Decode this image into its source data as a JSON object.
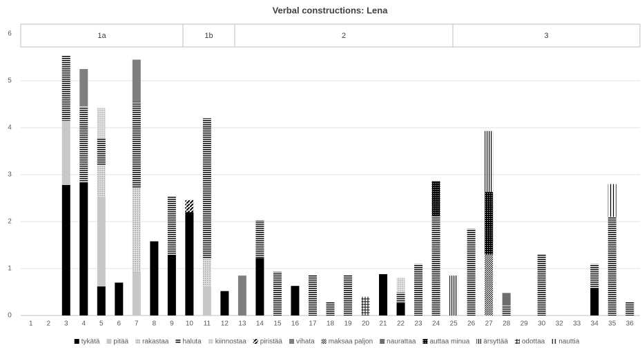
{
  "chart_data": {
    "type": "stacked_bar",
    "title": "Verbal constructions: Lena",
    "header_groups": [
      "1a",
      "1b",
      "2",
      "3"
    ],
    "categories": [
      "1",
      "2",
      "3",
      "4",
      "5",
      "6",
      "7",
      "8",
      "9",
      "10",
      "11",
      "12",
      "13",
      "14",
      "15",
      "16",
      "17",
      "18",
      "19",
      "20",
      "21",
      "22",
      "23",
      "24",
      "25",
      "26",
      "27",
      "28",
      "29",
      "30",
      "32",
      "33",
      "34",
      "35",
      "36"
    ],
    "ylim": [
      0,
      6
    ],
    "yticks": [
      0,
      1,
      2,
      3,
      4,
      5,
      6
    ],
    "grid": true,
    "legend": "bottom",
    "series": [
      {
        "name": "tykätä",
        "color": "#000000",
        "pattern": "solid",
        "values": [
          null,
          null,
          2.78,
          2.83,
          0.62,
          0.7,
          null,
          1.58,
          1.28,
          2.2,
          null,
          0.52,
          null,
          1.22,
          null,
          0.63,
          null,
          null,
          null,
          null,
          0.88,
          0.26,
          null,
          null,
          null,
          null,
          null,
          null,
          null,
          null,
          null,
          null,
          0.57,
          null,
          null
        ]
      },
      {
        "name": "pitää",
        "color": "#c8c8c8",
        "pattern": "solid",
        "values": [
          null,
          null,
          1.37,
          null,
          1.91,
          null,
          0.92,
          null,
          null,
          null,
          0.62,
          null,
          null,
          null,
          null,
          null,
          null,
          null,
          null,
          null,
          null,
          null,
          null,
          null,
          null,
          null,
          null,
          null,
          null,
          null,
          null,
          null,
          null,
          null,
          null
        ]
      },
      {
        "name": "rakastaa",
        "color": "#808080",
        "pattern": "dots",
        "values": [
          null,
          null,
          null,
          null,
          0.67,
          null,
          1.81,
          null,
          null,
          null,
          0.6,
          null,
          null,
          null,
          null,
          null,
          null,
          null,
          null,
          null,
          null,
          null,
          null,
          null,
          null,
          null,
          null,
          null,
          null,
          null,
          null,
          null,
          null,
          null,
          null
        ]
      },
      {
        "name": "haluta",
        "color": "#000000",
        "pattern": "hstripe",
        "values": [
          null,
          null,
          1.4,
          1.62,
          0.57,
          null,
          1.82,
          null,
          1.25,
          null,
          2.98,
          null,
          null,
          0.81,
          0.93,
          null,
          0.87,
          0.3,
          0.87,
          null,
          null,
          0.23,
          1.1,
          2.13,
          null,
          1.85,
          null,
          0.22,
          null,
          1.3,
          null,
          null,
          0.53,
          2.1,
          0.3
        ]
      },
      {
        "name": "kiinnostaa",
        "color": "#a0a0a0",
        "pattern": "dots",
        "values": [
          null,
          null,
          null,
          null,
          0.65,
          null,
          null,
          null,
          null,
          null,
          null,
          null,
          null,
          null,
          null,
          null,
          null,
          null,
          null,
          null,
          null,
          0.31,
          null,
          null,
          null,
          null,
          null,
          null,
          null,
          null,
          null,
          null,
          null,
          null,
          null
        ]
      },
      {
        "name": "piristää",
        "color": "#000000",
        "pattern": "diag",
        "values": [
          null,
          null,
          null,
          null,
          null,
          null,
          null,
          null,
          null,
          0.26,
          null,
          null,
          null,
          null,
          null,
          null,
          null,
          null,
          null,
          null,
          null,
          null,
          null,
          null,
          null,
          null,
          null,
          null,
          null,
          null,
          null,
          null,
          null,
          null,
          null
        ]
      },
      {
        "name": "vihata",
        "color": "#7f7f7f",
        "pattern": "solid",
        "values": [
          null,
          null,
          null,
          0.8,
          null,
          null,
          0.9,
          null,
          null,
          null,
          null,
          null,
          0.85,
          null,
          null,
          null,
          null,
          null,
          null,
          null,
          null,
          null,
          null,
          null,
          null,
          null,
          null,
          null,
          null,
          null,
          null,
          null,
          null,
          null,
          null
        ]
      },
      {
        "name": "maksaa paljon",
        "color": "#000000",
        "pattern": "finediag",
        "values": [
          null,
          null,
          null,
          null,
          null,
          null,
          null,
          null,
          null,
          null,
          null,
          null,
          null,
          null,
          null,
          null,
          null,
          null,
          null,
          null,
          null,
          null,
          null,
          null,
          null,
          null,
          1.3,
          null,
          null,
          null,
          null,
          null,
          null,
          null,
          null
        ]
      },
      {
        "name": "naurattaa",
        "color": "#6e6e6e",
        "pattern": "solid",
        "values": [
          null,
          null,
          null,
          null,
          null,
          null,
          null,
          null,
          null,
          null,
          null,
          null,
          null,
          null,
          null,
          null,
          null,
          null,
          null,
          null,
          null,
          null,
          null,
          null,
          null,
          null,
          null,
          0.26,
          null,
          null,
          null,
          null,
          null,
          null,
          null
        ]
      },
      {
        "name": "auttaa minua",
        "color": "#000000",
        "pattern": "darkdots",
        "values": [
          null,
          null,
          null,
          null,
          null,
          null,
          null,
          null,
          null,
          null,
          null,
          null,
          null,
          null,
          null,
          null,
          null,
          null,
          null,
          null,
          null,
          null,
          null,
          0.73,
          null,
          null,
          1.33,
          null,
          null,
          null,
          null,
          null,
          null,
          null,
          null
        ]
      },
      {
        "name": "ärsyttää",
        "color": "#000000",
        "pattern": "vstripe",
        "values": [
          null,
          null,
          null,
          null,
          null,
          null,
          null,
          null,
          null,
          null,
          null,
          null,
          null,
          null,
          null,
          null,
          null,
          null,
          null,
          null,
          null,
          null,
          null,
          null,
          0.85,
          null,
          1.3,
          null,
          null,
          null,
          null,
          null,
          null,
          null,
          null
        ]
      },
      {
        "name": "odottaa",
        "color": "#000000",
        "pattern": "cross",
        "values": [
          null,
          null,
          null,
          null,
          null,
          null,
          null,
          null,
          null,
          null,
          null,
          null,
          null,
          null,
          null,
          null,
          null,
          null,
          null,
          0.4,
          null,
          null,
          null,
          null,
          null,
          null,
          null,
          null,
          null,
          null,
          null,
          null,
          null,
          null,
          null
        ]
      },
      {
        "name": "nauttia",
        "color": "#000000",
        "pattern": "vsparse",
        "values": [
          null,
          null,
          null,
          null,
          null,
          null,
          null,
          null,
          null,
          null,
          null,
          null,
          null,
          null,
          null,
          null,
          null,
          null,
          null,
          null,
          null,
          null,
          null,
          null,
          null,
          null,
          null,
          null,
          null,
          null,
          null,
          null,
          null,
          0.7,
          null
        ]
      }
    ]
  }
}
